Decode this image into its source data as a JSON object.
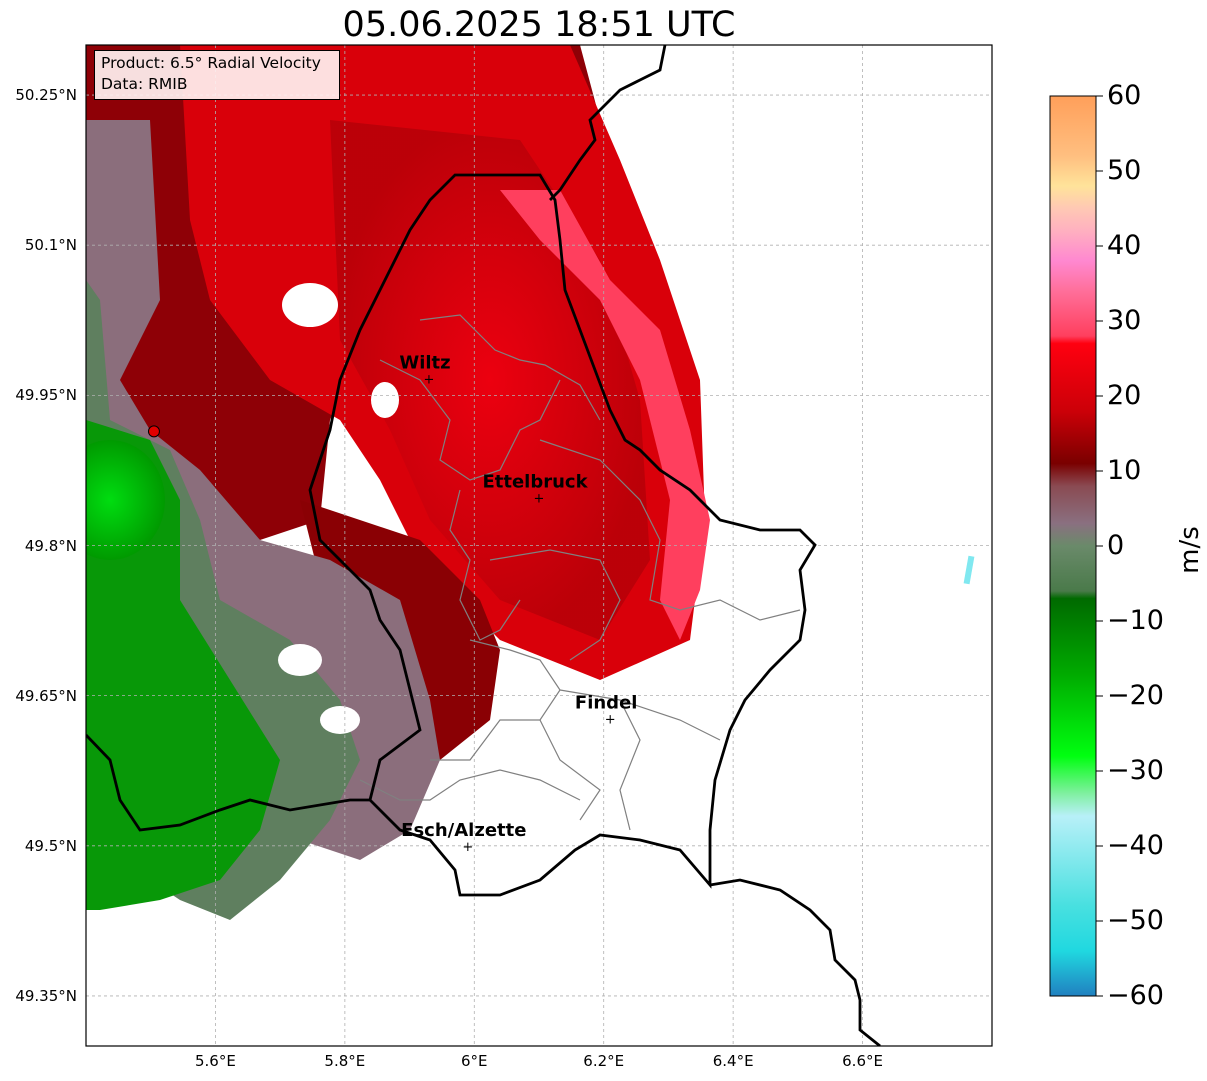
{
  "title": "05.06.2025 18:51 UTC",
  "infobox": {
    "product": "Product: 6.5° Radial Velocity",
    "source": "Data: RMIB"
  },
  "axes": {
    "lat_ticks": [
      "50.25°N",
      "50.1°N",
      "49.95°N",
      "49.8°N",
      "49.65°N",
      "49.5°N",
      "49.35°N"
    ],
    "lon_ticks": [
      "5.6°E",
      "5.8°E",
      "6°E",
      "6.2°E",
      "6.4°E",
      "6.6°E"
    ],
    "gridlines": true,
    "lat_range": [
      49.3,
      50.3
    ],
    "lon_range": [
      5.4,
      6.8
    ]
  },
  "cities": [
    {
      "name": "Wiltz",
      "lon": 5.93,
      "lat": 49.967
    },
    {
      "name": "Ettelbruck",
      "lon": 6.1,
      "lat": 49.848
    },
    {
      "name": "Findel",
      "lon": 6.21,
      "lat": 49.627
    },
    {
      "name": "Esch/Alzette",
      "lon": 5.99,
      "lat": 49.5
    }
  ],
  "radar_site": {
    "lon": 5.505,
    "lat": 49.914
  },
  "colorbar": {
    "label": "m/s",
    "ticks": [
      "60",
      "50",
      "40",
      "30",
      "20",
      "10",
      "0",
      "−10",
      "−20",
      "−30",
      "−40",
      "−50",
      "−60"
    ],
    "range": [
      -60,
      60
    ],
    "stops": [
      {
        "v": 60,
        "c": "#ff9f5a"
      },
      {
        "v": 52,
        "c": "#ffbf80"
      },
      {
        "v": 48,
        "c": "#ffe39a"
      },
      {
        "v": 45,
        "c": "#ffc8b4"
      },
      {
        "v": 42,
        "c": "#ffb0c0"
      },
      {
        "v": 38,
        "c": "#ff88d0"
      },
      {
        "v": 34,
        "c": "#ff6f9a"
      },
      {
        "v": 28,
        "c": "#ff3f5e"
      },
      {
        "v": 27,
        "c": "#ff0010"
      },
      {
        "v": 18,
        "c": "#cc0008"
      },
      {
        "v": 11,
        "c": "#7a0000"
      },
      {
        "v": 8,
        "c": "#8a4a52"
      },
      {
        "v": 3,
        "c": "#8a7080"
      },
      {
        "v": 0,
        "c": "#6a8a6a"
      },
      {
        "v": -6,
        "c": "#4a7a4a"
      },
      {
        "v": -7,
        "c": "#006a00"
      },
      {
        "v": -17,
        "c": "#00aa00"
      },
      {
        "v": -28,
        "c": "#00ff10"
      },
      {
        "v": -33,
        "c": "#80f0a0"
      },
      {
        "v": -36,
        "c": "#b8f0f8"
      },
      {
        "v": -48,
        "c": "#48e0e0"
      },
      {
        "v": -54,
        "c": "#20d8e0"
      },
      {
        "v": -60,
        "c": "#2080c0"
      }
    ]
  },
  "colors": {
    "border": "#000000",
    "canton": "#808080",
    "grid": "#b0b0b0"
  }
}
